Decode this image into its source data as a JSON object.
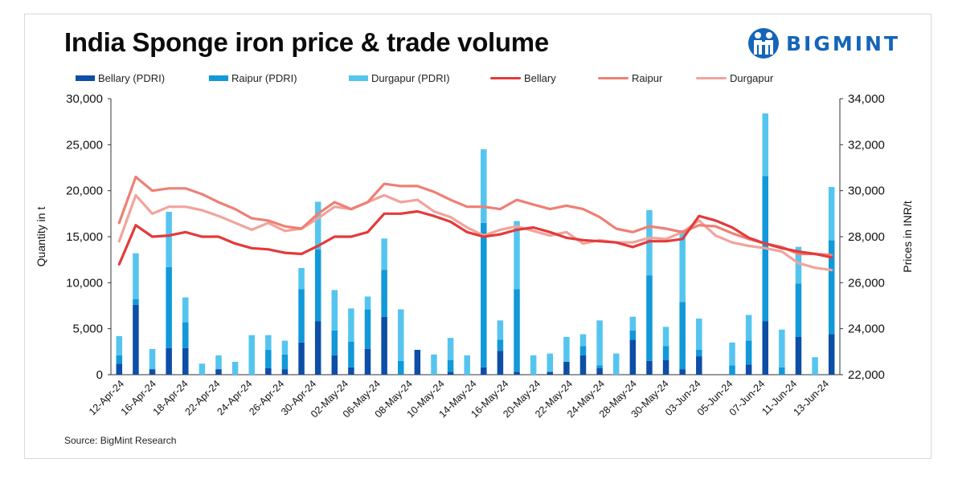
{
  "title": "India Sponge iron price & trade volume",
  "brand": "BIGMINT",
  "source": "Source: BigMint Research",
  "colors": {
    "bellary_bar": "#0d4ea6",
    "raipur_bar": "#1199d9",
    "durgapur_bar": "#55c5ef",
    "bellary_line": "#e43a3a",
    "raipur_line": "#ef7f74",
    "durgapur_line": "#f2a39b",
    "brand": "#1565b8"
  },
  "chart_data": {
    "type": "bar+line",
    "title": "India Sponge iron price & trade volume",
    "ylabel": "Quantity in t",
    "y2label": "Prices in INR/t",
    "ylim": [
      0,
      30000
    ],
    "y2lim": [
      22000,
      34000
    ],
    "yticks": [
      "0",
      "5,000",
      "10,000",
      "15,000",
      "20,000",
      "25,000",
      "30,000"
    ],
    "y2ticks": [
      "22,000",
      "24,000",
      "26,000",
      "28,000",
      "30,000",
      "32,000",
      "34,000"
    ],
    "x_tick_labels": [
      "12-Apr-24",
      "16-Apr-24",
      "18-Apr-24",
      "22-Apr-24",
      "24-Apr-24",
      "26-Apr-24",
      "30-Apr-24",
      "02-May-24",
      "06-May-24",
      "08-May-24",
      "10-May-24",
      "14-May-24",
      "16-May-24",
      "20-May-24",
      "22-May-24",
      "24-May-24",
      "28-May-24",
      "30-May-24",
      "03-Jun-24",
      "05-Jun-24",
      "07-Jun-24",
      "11-Jun-24",
      "13-Jun-24"
    ],
    "legend": [
      "Bellary (PDRI)",
      "Raipur (PDRI)",
      "Durgapur (PDRI)",
      "Bellary",
      "Raipur",
      "Durgapur"
    ],
    "bar_series": [
      {
        "name": "Bellary (PDRI)",
        "values": [
          1200,
          7600,
          600,
          2900,
          2900,
          0,
          600,
          0,
          0,
          700,
          600,
          3500,
          5800,
          2100,
          800,
          2800,
          6300,
          0,
          2700,
          0,
          300,
          0,
          800,
          2600,
          300,
          0,
          300,
          1400,
          2100,
          700,
          0,
          3800,
          1500,
          1600,
          600,
          2000,
          0,
          0,
          1100,
          5800,
          0,
          4100,
          0,
          4400
        ]
      },
      {
        "name": "Raipur (PDRI)",
        "values": [
          900,
          600,
          0,
          8800,
          2800,
          0,
          0,
          0,
          0,
          2000,
          1600,
          5800,
          7800,
          2700,
          2800,
          4300,
          5100,
          1500,
          0,
          0,
          1300,
          0,
          15700,
          1200,
          9000,
          0,
          0,
          0,
          1000,
          300,
          0,
          1000,
          9300,
          1500,
          7300,
          700,
          0,
          1000,
          2600,
          15800,
          800,
          5800,
          0,
          10200
        ]
      },
      {
        "name": "Durgapur (PDRI)",
        "values": [
          2100,
          5000,
          2200,
          6000,
          2700,
          1200,
          1500,
          1400,
          4300,
          1600,
          1500,
          2300,
          5200,
          4400,
          3600,
          1400,
          3400,
          5600,
          0,
          2200,
          2400,
          2100,
          8000,
          2100,
          7400,
          2100,
          2000,
          2700,
          1300,
          4900,
          2300,
          1500,
          7100,
          2100,
          7800,
          3400,
          0,
          2500,
          2800,
          6800,
          4100,
          4000,
          1900,
          5800
        ]
      }
    ],
    "line_series": [
      {
        "name": "Bellary",
        "values": [
          26800,
          28500,
          28000,
          28050,
          28200,
          28000,
          28000,
          27700,
          27500,
          27450,
          27300,
          27250,
          27600,
          28000,
          28000,
          28200,
          29000,
          29000,
          29100,
          28900,
          28650,
          28200,
          28000,
          28100,
          28300,
          28400,
          28200,
          27950,
          27850,
          27800,
          27750,
          27550,
          27800,
          27800,
          27900,
          28900,
          28700,
          28400,
          27950,
          27700,
          27500,
          27350,
          27250,
          27100
        ]
      },
      {
        "name": "Raipur",
        "values": [
          28600,
          30600,
          30000,
          30100,
          30100,
          29850,
          29500,
          29200,
          28800,
          28700,
          28450,
          28350,
          29000,
          29500,
          29200,
          29500,
          30300,
          30200,
          30200,
          29950,
          29600,
          29300,
          29300,
          29200,
          29600,
          29400,
          29200,
          29350,
          29200,
          28850,
          28350,
          28200,
          28450,
          28350,
          28200,
          28500,
          28450,
          28150,
          27900,
          27700,
          27550,
          27250,
          27250,
          27200
        ]
      },
      {
        "name": "Durgapur",
        "values": [
          27800,
          29800,
          29000,
          29300,
          29300,
          29150,
          28900,
          28600,
          28300,
          28600,
          28250,
          28350,
          28800,
          29300,
          29200,
          29500,
          29800,
          29500,
          29600,
          29100,
          28850,
          28400,
          28050,
          28300,
          28450,
          28250,
          28050,
          28200,
          27700,
          27850,
          27750,
          27750,
          27950,
          27900,
          28200,
          28700,
          28050,
          27750,
          27600,
          27500,
          27350,
          26850,
          26650,
          26550
        ]
      }
    ]
  }
}
